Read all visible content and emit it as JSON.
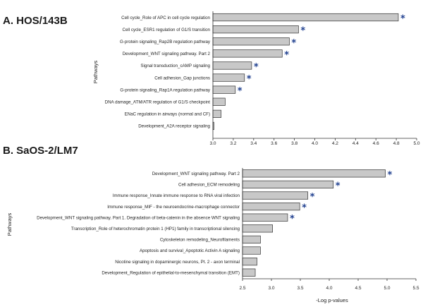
{
  "chart_data": [
    {
      "type": "bar",
      "orientation": "horizontal",
      "title": "A. HOS/143B",
      "ylabel": "Pathways",
      "xlabel": "",
      "xlim": [
        3.0,
        5.0
      ],
      "xticks": [
        "3.0",
        "3.2",
        "3.4",
        "3.6",
        "3.8",
        "4.0",
        "4.2",
        "4.4",
        "4.6",
        "4.8",
        "5.0"
      ],
      "categories": [
        "Cell cycle_Role of APC in cell cycle regulation",
        "Cell cycle_ESR1 regulation of G1/S transition",
        "G-protein signaling_Rap2B regulation pathway",
        "Development_WNT signaling pathway. Part 2",
        "Signal transduction_cAMP signaling",
        "Cell adhesion_Gap junctions",
        "G-protein signaling_Rap1A regulation pathway",
        "DNA damage_ATM/ATR regulation of G1/S checkpoint",
        "ENaC regulation in airways (normal and CF)",
        "Development_A2A receptor signaling"
      ],
      "values": [
        4.82,
        3.84,
        3.75,
        3.68,
        3.38,
        3.31,
        3.22,
        3.12,
        3.08,
        3.01
      ],
      "significant": [
        true,
        true,
        true,
        true,
        true,
        true,
        true,
        false,
        false,
        false
      ],
      "marker": "*"
    },
    {
      "type": "bar",
      "orientation": "horizontal",
      "title": "B. SaOS-2/LM7",
      "ylabel": "Pathways",
      "xlabel": "-Log p-values",
      "xlim": [
        2.5,
        5.5
      ],
      "xticks": [
        "2.5",
        "3.0",
        "3.5",
        "4.0",
        "4.5",
        "5.0",
        "5.5"
      ],
      "categories": [
        "Development_WNT signaling pathway. Part 2",
        "Cell adhesion_ECM remodeling",
        "Immune response_Innate immune response to RNA viral infection",
        "Immune response_MIF - the neuroendocrine-macrophage connector",
        "Development_WNT signaling pathway. Part 1. Degradation of beta-catenin in the absence WNT signaling",
        "Transcription_Role of heterochromatin protein 1 (HP1) family in transcriptional silencing",
        "Cytoskeleton remodeling_Neurofilaments",
        "Apoptosis and survival_Apoptotic Activin A signaling",
        "Nicotine signaling in dopaminergic neurons, Pt. 2 - axon terminal",
        "Development_Regulation of epithelial-to-mesenchymal transition (EMT)"
      ],
      "values": [
        4.97,
        4.07,
        3.63,
        3.49,
        3.28,
        3.02,
        2.81,
        2.81,
        2.75,
        2.72
      ],
      "significant": [
        true,
        true,
        true,
        true,
        true,
        false,
        false,
        false,
        false,
        false
      ],
      "marker": "*"
    }
  ]
}
